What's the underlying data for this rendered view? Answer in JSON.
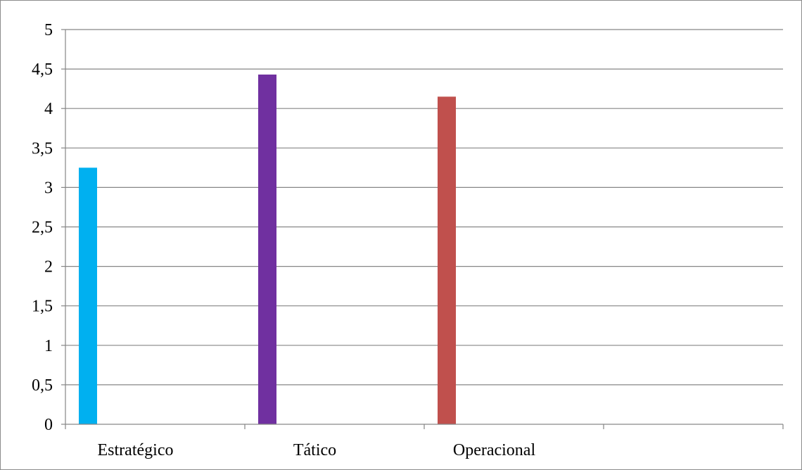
{
  "chart_data": {
    "type": "bar",
    "title": "",
    "xlabel": "",
    "ylabel": "",
    "categories": [
      "Estratégico",
      "Tático",
      "Operacional",
      ""
    ],
    "series": [
      {
        "values": [
          3.25,
          4.43,
          4.15,
          null
        ]
      }
    ],
    "bar_colors": [
      "#00b0f0",
      "#7030a0",
      "#c0504d"
    ],
    "ylim": [
      0,
      5
    ],
    "y_ticks": [
      "0",
      "0,5",
      "1",
      "1,5",
      "2",
      "2,5",
      "3",
      "3,5",
      "4",
      "4,5",
      "5"
    ],
    "grid": true,
    "legend": "none"
  }
}
